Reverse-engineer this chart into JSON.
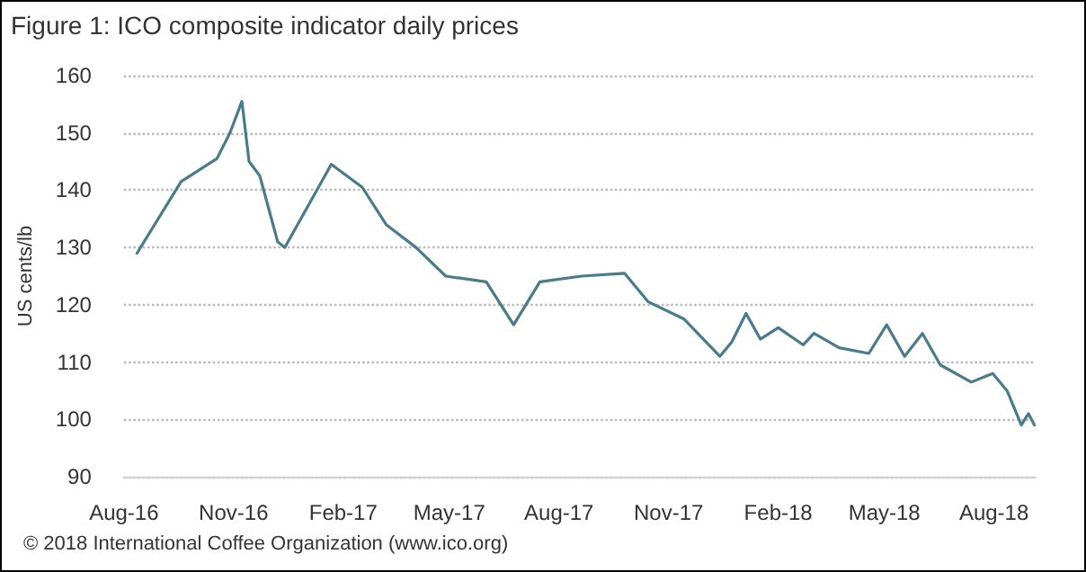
{
  "chart_data": {
    "type": "line",
    "title": "Figure 1: ICO composite indicator daily prices",
    "ylabel": "US cents/lb",
    "annotations": [
      "© 2018 International Coffee Organization (www.ico.org)"
    ],
    "x": [
      "2016-08-12",
      "2016-09-18",
      "2016-10-18",
      "2016-10-29",
      "2016-11-08",
      "2016-11-14",
      "2016-11-23",
      "2016-12-08",
      "2016-12-14",
      "2017-01-22",
      "2017-02-17",
      "2017-03-09",
      "2017-04-03",
      "2017-04-28",
      "2017-06-01",
      "2017-06-24",
      "2017-07-16",
      "2017-08-20",
      "2017-09-25",
      "2017-10-15",
      "2017-11-14",
      "2017-12-14",
      "2017-12-24",
      "2018-01-05",
      "2018-01-17",
      "2018-02-01",
      "2018-02-22",
      "2018-03-03",
      "2018-03-24",
      "2018-04-18",
      "2018-05-03",
      "2018-05-18",
      "2018-06-02",
      "2018-06-17",
      "2018-07-13",
      "2018-07-31",
      "2018-08-12",
      "2018-08-24",
      "2018-08-30",
      "2018-09-04"
    ],
    "series": [
      {
        "color": "#4a7b8c",
        "values": [
          129,
          141.5,
          145.5,
          150,
          155.5,
          145,
          142.5,
          131,
          130,
          144.5,
          140.5,
          134,
          130,
          125,
          124,
          116.5,
          124,
          125,
          125.5,
          120.5,
          117.5,
          111,
          113.5,
          118.5,
          114,
          116,
          113,
          115,
          112.5,
          111.5,
          116.5,
          111,
          115,
          109.5,
          106.5,
          108,
          105,
          99,
          101,
          99
        ]
      }
    ],
    "xlim": [
      "2016-08-01",
      "2018-09-05"
    ],
    "xticks": [
      {
        "value": "2016-08-01",
        "label": "Aug-16"
      },
      {
        "value": "2016-11-01",
        "label": "Nov-16"
      },
      {
        "value": "2017-02-01",
        "label": "Feb-17"
      },
      {
        "value": "2017-05-01",
        "label": "May-17"
      },
      {
        "value": "2017-08-01",
        "label": "Aug-17"
      },
      {
        "value": "2017-11-01",
        "label": "Nov-17"
      },
      {
        "value": "2018-02-01",
        "label": "Feb-18"
      },
      {
        "value": "2018-05-01",
        "label": "May-18"
      },
      {
        "value": "2018-08-01",
        "label": "Aug-18"
      }
    ],
    "ylim": [
      90,
      160
    ],
    "yticks": [
      90,
      100,
      110,
      120,
      130,
      140,
      150,
      160
    ],
    "grid": "y",
    "marker": "none",
    "line_style": "solid"
  }
}
